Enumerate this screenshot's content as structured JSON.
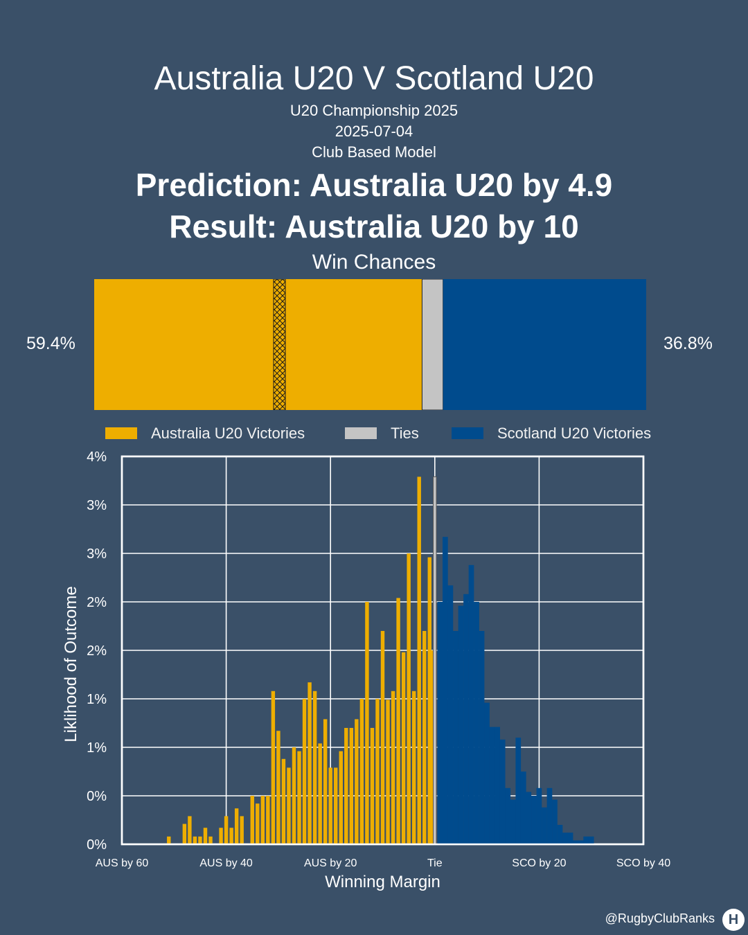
{
  "header": {
    "title": "Australia U20 V Scotland U20",
    "competition": "U20 Championship 2025",
    "date": "2025-07-04",
    "model": "Club Based Model",
    "prediction": "Prediction: Australia U20 by 4.9",
    "result": "Result: Australia U20 by 10"
  },
  "win_chances": {
    "heading": "Win Chances",
    "left_pct_label": "59.4%",
    "right_pct_label": "36.8%",
    "home_win": 59.4,
    "tie": 3.8,
    "away_win": 36.8,
    "home_color": "#eeae00",
    "tie_color": "#c4c4c4",
    "away_color": "#004b8d"
  },
  "legend": [
    {
      "label": "Australia U20 Victories",
      "color": "#eeae00"
    },
    {
      "label": "Ties",
      "color": "#c4c4c4"
    },
    {
      "label": "Scotland U20 Victories",
      "color": "#004b8d"
    }
  ],
  "chart_data": {
    "type": "bar",
    "xlabel": "Winning Margin",
    "ylabel": "Liklihood of Outcome",
    "x_ticks": [
      {
        "value": -60,
        "label": "AUS by 60"
      },
      {
        "value": -40,
        "label": "AUS by 40"
      },
      {
        "value": -20,
        "label": "AUS by 20"
      },
      {
        "value": 0,
        "label": "Tie"
      },
      {
        "value": 20,
        "label": "SCO by 20"
      },
      {
        "value": 40,
        "label": "SCO by 40"
      }
    ],
    "y_ticks": [
      {
        "value": 0.0,
        "label": "0%"
      },
      {
        "value": 0.5,
        "label": "0%"
      },
      {
        "value": 1.0,
        "label": "1%"
      },
      {
        "value": 1.5,
        "label": "1%"
      },
      {
        "value": 2.0,
        "label": "2%"
      },
      {
        "value": 2.5,
        "label": "2%"
      },
      {
        "value": 3.0,
        "label": "3%"
      },
      {
        "value": 3.5,
        "label": "3%"
      },
      {
        "value": 4.0,
        "label": "4%"
      }
    ],
    "xlim": [
      -60,
      40
    ],
    "ylim": [
      0,
      4
    ],
    "grid": true,
    "series": [
      {
        "name": "Australia U20 Victories",
        "color": "#eeae00",
        "points": [
          [
            -51,
            0.08
          ],
          [
            -48,
            0.21
          ],
          [
            -47,
            0.29
          ],
          [
            -46,
            0.08
          ],
          [
            -45,
            0.08
          ],
          [
            -44,
            0.17
          ],
          [
            -43,
            0.08
          ],
          [
            -41,
            0.17
          ],
          [
            -40,
            0.29
          ],
          [
            -39,
            0.17
          ],
          [
            -38,
            0.37
          ],
          [
            -37,
            0.29
          ],
          [
            -35,
            0.5
          ],
          [
            -34,
            0.42
          ],
          [
            -33,
            0.5
          ],
          [
            -32,
            0.5
          ],
          [
            -31,
            1.58
          ],
          [
            -30,
            1.17
          ],
          [
            -29,
            0.88
          ],
          [
            -28,
            0.79
          ],
          [
            -27,
            1.0
          ],
          [
            -26,
            0.96
          ],
          [
            -25,
            1.5
          ],
          [
            -24,
            1.67
          ],
          [
            -23,
            1.58
          ],
          [
            -22,
            1.04
          ],
          [
            -21,
            1.29
          ],
          [
            -20,
            0.79
          ],
          [
            -19,
            0.79
          ],
          [
            -18,
            0.96
          ],
          [
            -17,
            1.2
          ],
          [
            -16,
            1.2
          ],
          [
            -15,
            1.29
          ],
          [
            -14,
            1.5
          ],
          [
            -13,
            2.5
          ],
          [
            -12,
            1.2
          ],
          [
            -11,
            1.5
          ],
          [
            -10,
            2.2
          ],
          [
            -9,
            1.49
          ],
          [
            -8,
            1.58
          ],
          [
            -7,
            2.54
          ],
          [
            -6,
            1.98
          ],
          [
            -5,
            3.0
          ],
          [
            -4,
            1.58
          ],
          [
            -3,
            3.79
          ],
          [
            -2,
            2.2
          ],
          [
            -1,
            2.96
          ],
          [
            -0.5,
            2.0
          ]
        ]
      },
      {
        "name": "Ties",
        "color": "#c4c4c4",
        "points": [
          [
            0,
            3.79
          ]
        ]
      },
      {
        "name": "Scotland U20 Victories",
        "color": "#004b8d",
        "points": [
          [
            1,
            2.5
          ],
          [
            2,
            3.17
          ],
          [
            3,
            2.67
          ],
          [
            4,
            2.2
          ],
          [
            5,
            2.46
          ],
          [
            6,
            2.58
          ],
          [
            7,
            2.88
          ],
          [
            8,
            2.5
          ],
          [
            9,
            2.2
          ],
          [
            10,
            1.46
          ],
          [
            11,
            1.21
          ],
          [
            12,
            1.21
          ],
          [
            13,
            1.08
          ],
          [
            14,
            0.58
          ],
          [
            15,
            0.46
          ],
          [
            16,
            1.1
          ],
          [
            17,
            0.75
          ],
          [
            18,
            0.54
          ],
          [
            19,
            0.5
          ],
          [
            20,
            0.58
          ],
          [
            21,
            0.38
          ],
          [
            22,
            0.58
          ],
          [
            23,
            0.46
          ],
          [
            24,
            0.2
          ],
          [
            25,
            0.12
          ],
          [
            26,
            0.12
          ],
          [
            27,
            0.04
          ],
          [
            28,
            0.04
          ],
          [
            29,
            0.08
          ],
          [
            30,
            0.08
          ]
        ]
      }
    ]
  },
  "footer": {
    "handle": "@RugbyClubRanks",
    "logo_glyph": "H"
  }
}
